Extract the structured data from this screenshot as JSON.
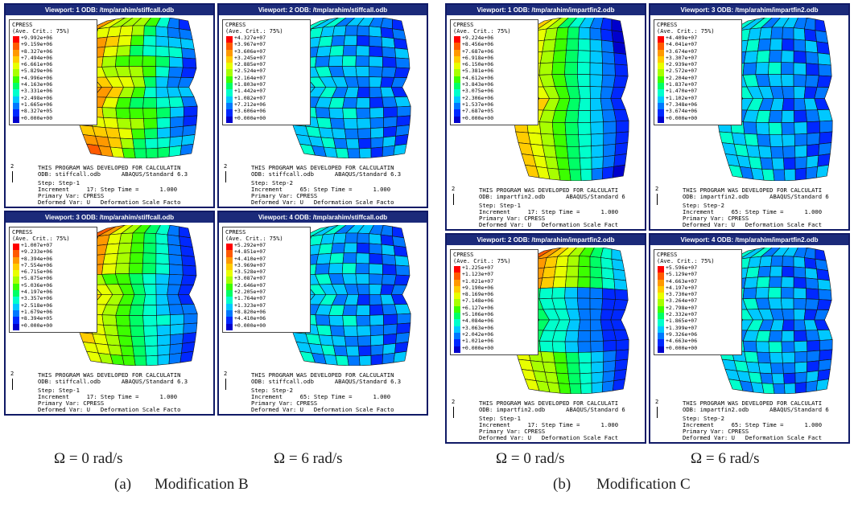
{
  "groups": [
    {
      "caption_label": "(a)",
      "caption_text": "Modification B",
      "omega_left": "Ω = 0 rad/s",
      "omega_right": "Ω = 6 rad/s",
      "viewports": [
        {
          "title": "Viewport: 1    ODB: /tmp/arahim/stiffcall.odb",
          "variable": "CPRESS",
          "averaging": "(Ave. Crit.: 75%)",
          "values": [
            "+9.992e+06",
            "+9.159e+06",
            "+8.327e+06",
            "+7.494e+06",
            "+6.661e+06",
            "+5.829e+06",
            "+4.996e+06",
            "+4.163e+06",
            "+3.331e+06",
            "+2.498e+06",
            "+1.665e+06",
            "+8.327e+05",
            "+0.000e+00"
          ],
          "footer_program": "THIS PROGRAM WAS DEVELOPED FOR CALCULATIN",
          "footer_odb": "ODB: stiffcall.odb      ABAQUS/Standard 6.3",
          "step": "Step: Step-1",
          "increment": "Increment     17: Step Time =      1.000",
          "primary": "Primary Var: CPRESS",
          "deformed": "Deformed Var: U   Deformation Scale Facto"
        },
        {
          "title": "Viewport: 2    ODB: /tmp/arahim/stiffcall.odb",
          "variable": "CPRESS",
          "averaging": "(Ave. Crit.: 75%)",
          "values": [
            "+4.327e+07",
            "+3.967e+07",
            "+3.606e+07",
            "+3.245e+07",
            "+2.885e+07",
            "+2.524e+07",
            "+2.164e+07",
            "+1.803e+07",
            "+1.442e+07",
            "+1.082e+07",
            "+7.212e+06",
            "+3.606e+06",
            "+0.000e+00"
          ],
          "footer_program": "THIS PROGRAM WAS DEVELOPED FOR CALCULATIN",
          "footer_odb": "ODB: stiffcall.odb      ABAQUS/Standard 6.3",
          "step": "Step: Step-2",
          "increment": "Increment     65: Step Time =      1.000",
          "primary": "Primary Var: CPRESS",
          "deformed": "Deformed Var: U   Deformation Scale Facto"
        },
        {
          "title": "Viewport: 3    ODB: /tmp/arahim/stiffcall.odb",
          "variable": "CPRESS",
          "averaging": "(Ave. Crit.: 75%)",
          "values": [
            "+1.007e+07",
            "+9.233e+06",
            "+8.394e+06",
            "+7.554e+06",
            "+6.715e+06",
            "+5.875e+06",
            "+5.036e+06",
            "+4.197e+06",
            "+3.357e+06",
            "+2.518e+06",
            "+1.679e+06",
            "+8.394e+05",
            "+0.000e+00"
          ],
          "footer_program": "THIS PROGRAM WAS DEVELOPED FOR CALCULATIN",
          "footer_odb": "ODB: stiffcall.odb      ABAQUS/Standard 6.3",
          "step": "Step: Step-1",
          "increment": "Increment     17: Step Time =      1.000",
          "primary": "Primary Var: CPRESS",
          "deformed": "Deformed Var: U   Deformation Scale Facto"
        },
        {
          "title": "Viewport: 4    ODB: /tmp/arahim/stiffcall.odb",
          "variable": "CPRESS",
          "averaging": "(Ave. Crit.: 75%)",
          "values": [
            "+5.292e+07",
            "+4.851e+07",
            "+4.410e+07",
            "+3.969e+07",
            "+3.528e+07",
            "+3.087e+07",
            "+2.646e+07",
            "+2.205e+07",
            "+1.764e+07",
            "+1.323e+07",
            "+8.820e+06",
            "+4.410e+06",
            "+0.000e+00"
          ],
          "footer_program": "THIS PROGRAM WAS DEVELOPED FOR CALCULATIN",
          "footer_odb": "ODB: stiffcall.odb      ABAQUS/Standard 6.3",
          "step": "Step: Step-2",
          "increment": "Increment     65: Step Time =      1.000",
          "primary": "Primary Var: CPRESS",
          "deformed": "Deformed Var: U   Deformation Scale Facto"
        }
      ]
    },
    {
      "caption_label": "(b)",
      "caption_text": "Modification C",
      "omega_left": "Ω = 0 rad/s",
      "omega_right": "Ω = 6 rad/s",
      "viewports": [
        {
          "title": "Viewport: 1    ODB: /tmp/arahim/impartfin2.odb",
          "variable": "CPRESS",
          "averaging": "(Ave. Crit.: 75%)",
          "values": [
            "+9.224e+06",
            "+8.456e+06",
            "+7.687e+06",
            "+6.918e+06",
            "+6.150e+06",
            "+5.381e+06",
            "+4.612e+06",
            "+3.843e+06",
            "+3.075e+06",
            "+2.306e+06",
            "+1.537e+06",
            "+7.687e+05",
            "+0.000e+00"
          ],
          "footer_program": "THIS PROGRAM WAS DEVELOPED FOR CALCULATI",
          "footer_odb": "ODB: impartfin2.odb      ABAQUS/Standard 6",
          "step": "Step: Step-1",
          "increment": "Increment     17: Step Time =      1.000",
          "primary": "Primary Var: CPRESS",
          "deformed": "Deformed Var: U   Deformation Scale Fact"
        },
        {
          "title": "Viewport: 3    ODB: /tmp/arahim/impartfin2.odb",
          "variable": "CPRESS",
          "averaging": "(Ave. Crit.: 75%)",
          "values": [
            "+4.409e+07",
            "+4.041e+07",
            "+3.674e+07",
            "+3.307e+07",
            "+2.939e+07",
            "+2.572e+07",
            "+2.204e+07",
            "+1.837e+07",
            "+1.470e+07",
            "+1.102e+07",
            "+7.348e+06",
            "+3.674e+06",
            "+0.000e+00"
          ],
          "footer_program": "THIS PROGRAM WAS DEVELOPED FOR CALCULATI",
          "footer_odb": "ODB: impartfin2.odb      ABAQUS/Standard 6",
          "step": "Step: Step-2",
          "increment": "Increment     65: Step Time =      1.000",
          "primary": "Primary Var: CPRESS",
          "deformed": "Deformed Var: U   Deformation Scale Fact"
        },
        {
          "title": "Viewport: 2    ODB: /tmp/arahim/impartfin2.odb",
          "variable": "CPRESS",
          "averaging": "(Ave. Crit.: 75%)",
          "values": [
            "+1.225e+07",
            "+1.123e+07",
            "+1.021e+07",
            "+9.190e+06",
            "+8.169e+06",
            "+7.148e+06",
            "+6.127e+06",
            "+5.106e+06",
            "+4.084e+06",
            "+3.063e+06",
            "+2.042e+06",
            "+1.021e+06",
            "+0.000e+00"
          ],
          "footer_program": "THIS PROGRAM WAS DEVELOPED FOR CALCULATI",
          "footer_odb": "ODB: impartfin2.odb      ABAQUS/Standard 6",
          "step": "Step: Step-1",
          "increment": "Increment     17: Step Time =      1.000",
          "primary": "Primary Var: CPRESS",
          "deformed": "Deformed Var: U   Deformation Scale Fact"
        },
        {
          "title": "Viewport: 4    ODB: /tmp/arahim/impartfin2.odb",
          "variable": "CPRESS",
          "averaging": "(Ave. Crit.: 75%)",
          "values": [
            "+5.596e+07",
            "+5.129e+07",
            "+4.663e+07",
            "+4.197e+07",
            "+3.730e+07",
            "+3.264e+07",
            "+2.798e+07",
            "+2.332e+07",
            "+1.865e+07",
            "+1.399e+07",
            "+9.326e+06",
            "+4.663e+06",
            "+0.000e+00"
          ],
          "footer_program": "THIS PROGRAM WAS DEVELOPED FOR CALCULATI",
          "footer_odb": "ODB: impartfin2.odb      ABAQUS/Standard 6",
          "step": "Step: Step-2",
          "increment": "Increment     65: Step Time =      1.000",
          "primary": "Primary Var: CPRESS",
          "deformed": "Deformed Var: U   Deformation Scale Fact"
        }
      ]
    }
  ],
  "axis_label": "2",
  "colors": {
    "scale": [
      "#ff0000",
      "#ff5a00",
      "#ff9900",
      "#ffcc00",
      "#e8ff00",
      "#a8ff00",
      "#3cff00",
      "#00ff66",
      "#00ffcc",
      "#00c8ff",
      "#0078ff",
      "#0028ff",
      "#0000cc"
    ],
    "title_bar": "#1b2a7a"
  }
}
